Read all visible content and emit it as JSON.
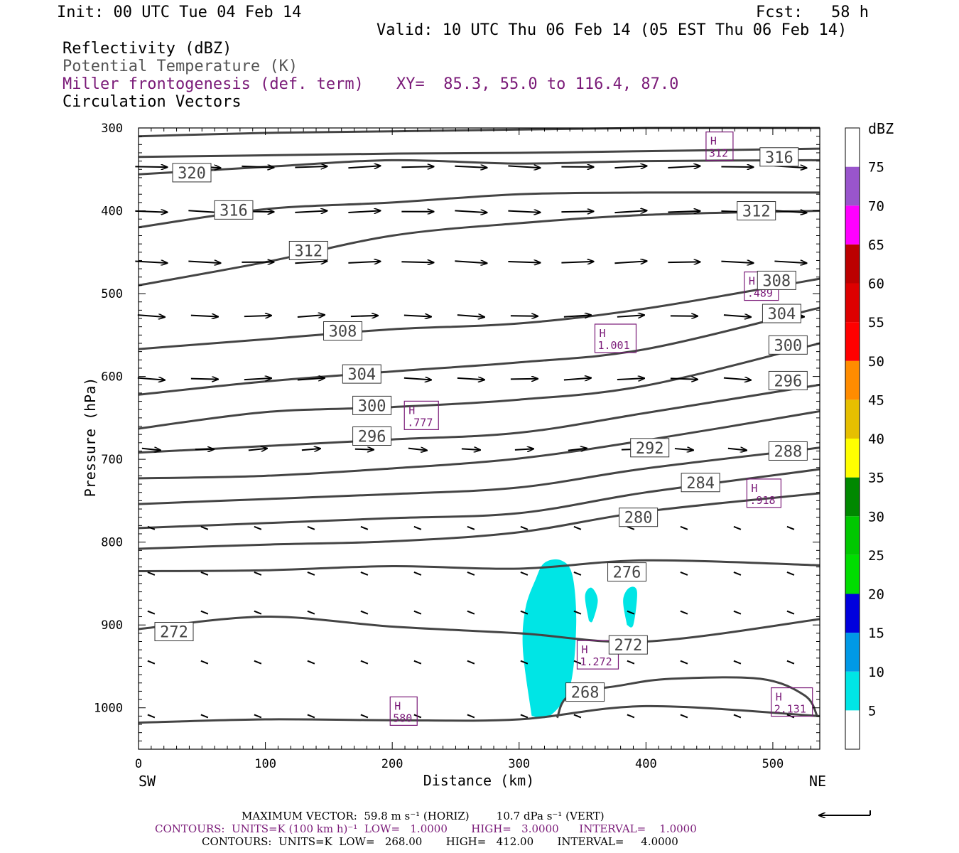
{
  "header": {
    "init": "Init: 00 UTC Tue 04 Feb 14",
    "fcst": "Fcst:   58 h",
    "valid": "Valid: 10 UTC Thu 06 Feb 14 (05 EST Thu 06 Feb 14)",
    "field1": "Reflectivity (dBZ)",
    "field2": "Potential Temperature (K)",
    "field3": "Miller frontogenesis (def. term)",
    "xy": "XY=  85.3, 55.0 to 116.4, 87.0",
    "field4": "Circulation Vectors"
  },
  "axes": {
    "ylabel": "Pressure (hPa)",
    "xlabel": "Distance (km)",
    "left_end": "SW",
    "right_end": "NE"
  },
  "colorbar": {
    "title": "dBZ",
    "levels": [
      "5",
      "10",
      "15",
      "20",
      "25",
      "30",
      "35",
      "40",
      "45",
      "50",
      "55",
      "60",
      "65",
      "70",
      "75"
    ],
    "colors": [
      "#00e5e5",
      "#0099e6",
      "#0000dd",
      "#00dd00",
      "#00c800",
      "#008800",
      "#ffff00",
      "#e6bf00",
      "#ff8c00",
      "#ff0000",
      "#dd0000",
      "#bb0000",
      "#ff00ff",
      "#9955cc",
      "#ffffff"
    ]
  },
  "footer": {
    "line1": "MAXIMUM VECTOR:  59.8 m s⁻¹ (HORIZ)        10.7 dPa s⁻¹ (VERT)",
    "line2": "CONTOURS:  UNITS=K (100 km h)⁻¹  LOW=   1.0000       HIGH=   3.0000      INTERVAL=    1.0000",
    "line3": "CONTOURS:  UNITS=K  LOW=   268.00       HIGH=   412.00       INTERVAL=     4.0000"
  },
  "chart_data": {
    "type": "cross-section",
    "xlim": [
      0,
      537
    ],
    "ylim": [
      1050,
      300
    ],
    "xticks": [
      0,
      100,
      200,
      300,
      400,
      500
    ],
    "yticks": [
      300,
      400,
      500,
      600,
      700,
      800,
      900,
      1000
    ],
    "theta_contours": [
      {
        "label": "320",
        "label_at": [
          42,
          354
        ],
        "points": [
          [
            0,
            310
          ],
          [
            100,
            306
          ],
          [
            200,
            304
          ],
          [
            300,
            302
          ],
          [
            400,
            300
          ],
          [
            537,
            300
          ]
        ]
      },
      {
        "label": "",
        "label_at": null,
        "points": [
          [
            0,
            356
          ],
          [
            100,
            347
          ],
          [
            200,
            339
          ],
          [
            300,
            343
          ],
          [
            400,
            340
          ],
          [
            537,
            339
          ]
        ]
      },
      {
        "label": "316",
        "label_at": [
          75,
          399
        ],
        "points": [
          [
            0,
            335
          ],
          [
            100,
            333
          ],
          [
            200,
            331
          ],
          [
            300,
            330
          ],
          [
            400,
            328
          ],
          [
            537,
            325
          ]
        ]
      },
      {
        "label": "316",
        "label_at": [
          505,
          335
        ],
        "points": [
          [
            0,
            420
          ],
          [
            100,
            398
          ],
          [
            200,
            390
          ],
          [
            300,
            380
          ],
          [
            400,
            378
          ],
          [
            537,
            378
          ]
        ]
      },
      {
        "label": "312",
        "label_at": [
          134,
          448
        ],
        "points": [
          [
            0,
            490
          ],
          [
            100,
            462
          ],
          [
            200,
            430
          ],
          [
            300,
            415
          ],
          [
            400,
            405
          ],
          [
            537,
            400
          ]
        ]
      },
      {
        "label": "312",
        "label_at": [
          487,
          400
        ],
        "points": [
          [
            0,
            567
          ],
          [
            100,
            555
          ],
          [
            200,
            543
          ],
          [
            300,
            536
          ],
          [
            400,
            518
          ],
          [
            537,
            482
          ]
        ]
      },
      {
        "label": "308",
        "label_at": [
          161,
          545
        ],
        "points": [
          [
            0,
            622
          ],
          [
            100,
            606
          ],
          [
            200,
            594
          ],
          [
            300,
            583
          ],
          [
            400,
            567
          ],
          [
            537,
            517
          ]
        ]
      },
      {
        "label": "308",
        "label_at": [
          503,
          484
        ],
        "points": [
          [
            0,
            663
          ],
          [
            100,
            643
          ],
          [
            200,
            637
          ],
          [
            300,
            628
          ],
          [
            400,
            611
          ],
          [
            537,
            560
          ]
        ]
      },
      {
        "label": "304",
        "label_at": [
          176,
          597
        ],
        "points": [
          [
            0,
            692
          ],
          [
            100,
            684
          ],
          [
            200,
            676
          ],
          [
            300,
            668
          ],
          [
            400,
            644
          ],
          [
            537,
            610
          ]
        ]
      },
      {
        "label": "304",
        "label_at": [
          507,
          524
        ],
        "points": [
          [
            0,
            723
          ],
          [
            100,
            720
          ],
          [
            200,
            711
          ],
          [
            300,
            699
          ],
          [
            400,
            677
          ],
          [
            537,
            642
          ]
        ]
      },
      {
        "label": "300",
        "label_at": [
          184,
          635
        ],
        "points": [
          [
            0,
            754
          ],
          [
            100,
            748
          ],
          [
            200,
            742
          ],
          [
            300,
            734
          ],
          [
            400,
            711
          ],
          [
            537,
            686
          ]
        ]
      },
      {
        "label": "300",
        "label_at": [
          512,
          562
        ],
        "points": [
          [
            0,
            783
          ],
          [
            100,
            777
          ],
          [
            200,
            771
          ],
          [
            300,
            765
          ],
          [
            400,
            740
          ],
          [
            537,
            712
          ]
        ]
      },
      {
        "label": "296",
        "label_at": [
          184,
          672
        ],
        "points": [
          [
            0,
            808
          ],
          [
            100,
            803
          ],
          [
            200,
            799
          ],
          [
            300,
            788
          ],
          [
            400,
            763
          ],
          [
            537,
            741
          ]
        ]
      },
      {
        "label": "296",
        "label_at": [
          512,
          605
        ],
        "points": [
          [
            0,
            835
          ],
          [
            100,
            834
          ],
          [
            200,
            829
          ],
          [
            300,
            832
          ],
          [
            400,
            822
          ],
          [
            537,
            828
          ]
        ]
      },
      {
        "label": "292",
        "label_at": [
          403,
          686
        ],
        "points": [
          [
            0,
            905
          ],
          [
            100,
            890
          ],
          [
            200,
            902
          ],
          [
            300,
            910
          ],
          [
            400,
            920
          ],
          [
            537,
            893
          ]
        ]
      },
      {
        "label": "288",
        "label_at": [
          512,
          690
        ],
        "points": [
          [
            0,
            1018
          ],
          [
            100,
            1014
          ],
          [
            200,
            1015
          ],
          [
            300,
            1014
          ],
          [
            400,
            998
          ],
          [
            537,
            1010
          ]
        ]
      },
      {
        "label": "284",
        "label_at": [
          443,
          728
        ],
        "points": []
      },
      {
        "label": "280",
        "label_at": [
          394,
          770
        ],
        "points": []
      },
      {
        "label": "276",
        "label_at": [
          385,
          836
        ],
        "points": []
      },
      {
        "label": "272",
        "label_at": [
          28,
          908
        ],
        "points": []
      },
      {
        "label": "272",
        "label_at": [
          386,
          924
        ],
        "points": []
      },
      {
        "label": "268",
        "label_at": [
          352,
          981
        ],
        "points": [
          [
            330,
            1012
          ],
          [
            340,
            985
          ],
          [
            380,
            973
          ],
          [
            420,
            965
          ],
          [
            490,
            965
          ],
          [
            525,
            985
          ],
          [
            535,
            1010
          ]
        ]
      }
    ],
    "frontogenesis_maxima": [
      {
        "label": "H",
        "value": "312",
        "at": [
          458,
          322
        ]
      },
      {
        "label": "H",
        "value": ".489",
        "at": [
          491,
          491
        ]
      },
      {
        "label": "H",
        "value": "1.001",
        "at": [
          376,
          554
        ]
      },
      {
        "label": "H",
        "value": ".777",
        "at": [
          223,
          647
        ]
      },
      {
        "label": "H",
        "value": ".918",
        "at": [
          493,
          741
        ]
      },
      {
        "label": "H",
        "value": "1.272",
        "at": [
          362,
          936
        ]
      },
      {
        "label": "H",
        "value": "580",
        "at": [
          209,
          1004
        ]
      },
      {
        "label": "H",
        "value": "2.131",
        "at": [
          515,
          993
        ]
      }
    ],
    "reflectivity_5dbz_areas": [
      [
        [
          310,
          1010
        ],
        [
          303,
          930
        ],
        [
          305,
          880
        ],
        [
          313,
          845
        ],
        [
          320,
          825
        ],
        [
          333,
          822
        ],
        [
          342,
          840
        ],
        [
          345,
          900
        ],
        [
          340,
          975
        ],
        [
          324,
          1010
        ]
      ],
      [
        [
          355,
          895
        ],
        [
          352,
          865
        ],
        [
          357,
          855
        ],
        [
          362,
          870
        ],
        [
          358,
          895
        ]
      ],
      [
        [
          385,
          900
        ],
        [
          382,
          870
        ],
        [
          387,
          855
        ],
        [
          393,
          860
        ],
        [
          390,
          900
        ]
      ]
    ],
    "vector_rows_hpa": [
      347,
      401,
      462,
      527,
      603,
      688,
      783,
      838,
      885,
      945,
      1010
    ]
  }
}
